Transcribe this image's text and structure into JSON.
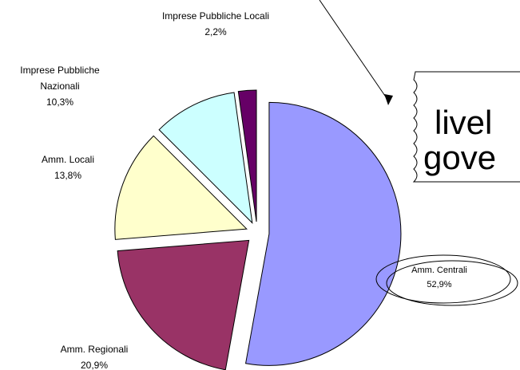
{
  "chart_data": {
    "type": "pie",
    "categories": [
      "Amm. Centrali",
      "Amm. Regionali",
      "Amm. Locali",
      "Imprese Pubbliche Nazionali",
      "Imprese Pubbliche Locali"
    ],
    "values": [
      52.9,
      20.9,
      13.8,
      10.3,
      2.2
    ],
    "value_labels": [
      "52,9%",
      "20,9%",
      "13,8%",
      "10,3%",
      "2,2%"
    ],
    "colors": [
      "#9999ff",
      "#993366",
      "#ffffcc",
      "#ccffff",
      "#660066"
    ],
    "annotations": [
      "livel",
      "gove"
    ]
  }
}
